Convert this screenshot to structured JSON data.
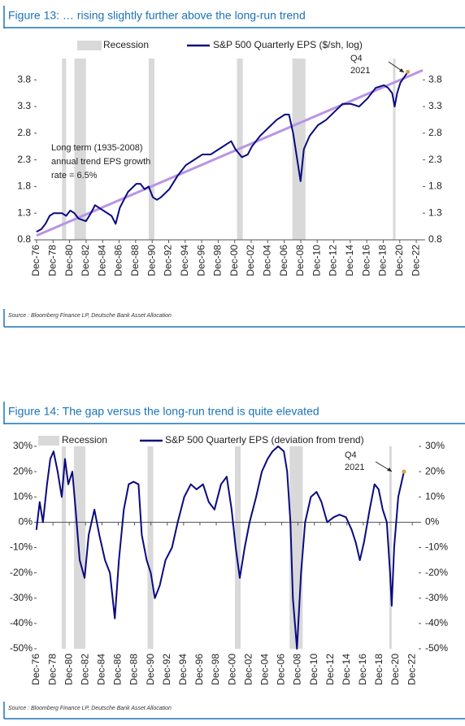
{
  "chart_data": [
    {
      "type": "line",
      "title": "Figure 13: … rising slightly further above the long-run trend",
      "source": "Source : Bloomberg Finance LP, Deutsche Bank Asset Allocation",
      "annotations": [
        "Long term (1935-2008)",
        "annual trend EPS growth",
        "rate = 6.5%",
        "Q4",
        "2021"
      ],
      "recession": {
        "name": "Recession",
        "color": "#d9d9d9",
        "starts": [
          1980.0,
          1981.5,
          1990.5,
          2001.2,
          2007.9,
          2020.1
        ],
        "ends": [
          1980.5,
          1982.9,
          1991.2,
          2001.9,
          2009.5,
          2020.4
        ]
      },
      "trend": {
        "x": [
          1976.92,
          2023.7
        ],
        "values": [
          0.88,
          3.98
        ],
        "color": "#b894e6"
      },
      "end_marker_color": "#d4a04a",
      "x": [
        1976.9,
        1977.5,
        1978,
        1978.5,
        1979,
        1980,
        1980.5,
        1981,
        1981.5,
        1982,
        1982.9,
        1983.5,
        1984,
        1985,
        1986,
        1986.5,
        1987,
        1988,
        1989,
        1989.5,
        1990,
        1990.5,
        1991,
        1991.5,
        1992,
        1993,
        1994,
        1995,
        1996,
        1997,
        1998,
        1999,
        2000,
        2000.5,
        2001,
        2001.8,
        2002.5,
        2003,
        2004,
        2005,
        2006,
        2007,
        2007.5,
        2008,
        2008.9,
        2009.3,
        2010,
        2011,
        2012,
        2013,
        2014,
        2015,
        2016,
        2017,
        2018,
        2019,
        2019.5,
        2020,
        2020.3,
        2020.6,
        2021,
        2021.9
      ],
      "series": [
        {
          "name": "S&P 500 Quarterly EPS ($/sh, log)",
          "color": "#0a0a80",
          "values": [
            0.95,
            1.0,
            1.1,
            1.25,
            1.3,
            1.3,
            1.25,
            1.35,
            1.3,
            1.2,
            1.15,
            1.3,
            1.45,
            1.35,
            1.25,
            1.1,
            1.4,
            1.7,
            1.85,
            1.85,
            1.75,
            1.8,
            1.6,
            1.55,
            1.6,
            1.75,
            2.0,
            2.2,
            2.3,
            2.4,
            2.4,
            2.5,
            2.6,
            2.65,
            2.5,
            2.35,
            2.4,
            2.55,
            2.75,
            2.9,
            3.05,
            3.15,
            3.15,
            2.8,
            1.9,
            2.5,
            2.75,
            2.95,
            3.05,
            3.2,
            3.35,
            3.35,
            3.3,
            3.45,
            3.65,
            3.7,
            3.65,
            3.55,
            3.3,
            3.55,
            3.75,
            3.95
          ]
        }
      ],
      "xlim": [
        1976.92,
        2023.7
      ],
      "xticks": [
        {
          "value": 1976.92,
          "label": "Dec-76"
        },
        {
          "value": 1978.92,
          "label": "Dec-78"
        },
        {
          "value": 1980.92,
          "label": "Dec-80"
        },
        {
          "value": 1982.92,
          "label": "Dec-82"
        },
        {
          "value": 1984.92,
          "label": "Dec-84"
        },
        {
          "value": 1986.92,
          "label": "Dec-86"
        },
        {
          "value": 1988.92,
          "label": "Dec-88"
        },
        {
          "value": 1990.92,
          "label": "Dec-90"
        },
        {
          "value": 1992.92,
          "label": "Dec-92"
        },
        {
          "value": 1994.92,
          "label": "Dec-94"
        },
        {
          "value": 1996.92,
          "label": "Dec-96"
        },
        {
          "value": 1998.92,
          "label": "Dec-98"
        },
        {
          "value": 2000.92,
          "label": "Dec-00"
        },
        {
          "value": 2002.92,
          "label": "Dec-02"
        },
        {
          "value": 2004.92,
          "label": "Dec-04"
        },
        {
          "value": 2006.92,
          "label": "Dec-06"
        },
        {
          "value": 2008.92,
          "label": "Dec-08"
        },
        {
          "value": 2010.92,
          "label": "Dec-10"
        },
        {
          "value": 2012.92,
          "label": "Dec-12"
        },
        {
          "value": 2014.92,
          "label": "Dec-14"
        },
        {
          "value": 2016.92,
          "label": "Dec-16"
        },
        {
          "value": 2018.92,
          "label": "Dec-18"
        },
        {
          "value": 2020.92,
          "label": "Dec-20"
        },
        {
          "value": 2022.92,
          "label": "Dec-22"
        }
      ],
      "ylim": [
        0.8,
        4.2
      ],
      "yticks": [
        0.8,
        1.3,
        1.8,
        2.3,
        2.8,
        3.3,
        3.8
      ]
    },
    {
      "type": "line",
      "title": "Figure 14: The gap versus the long-run trend is quite elevated",
      "source": "Source : Bloomberg Finance LP, Deutsche Bank Asset Allocation",
      "annotations": [
        "Q4",
        "2021"
      ],
      "recession": {
        "name": "Recession",
        "color": "#d9d9d9",
        "starts": [
          1980.0,
          1981.5,
          1990.5,
          2001.2,
          2007.9,
          2020.1
        ],
        "ends": [
          1980.5,
          1982.9,
          1991.2,
          2001.9,
          2009.5,
          2020.4
        ]
      },
      "end_marker_color": "#d4a04a",
      "x": [
        1976.9,
        1977.3,
        1977.7,
        1978.2,
        1978.6,
        1979,
        1979.5,
        1980,
        1980.4,
        1980.8,
        1981.3,
        1981.7,
        1982.2,
        1982.8,
        1983.3,
        1984,
        1984.6,
        1985.3,
        1985.9,
        1986.5,
        1987,
        1987.6,
        1988.2,
        1988.8,
        1989.4,
        1989.8,
        1990.4,
        1990.9,
        1991.4,
        1992,
        1992.7,
        1993.5,
        1994.2,
        1995,
        1995.8,
        1996.5,
        1997.3,
        1998,
        1998.7,
        1999.5,
        2000.2,
        2000.8,
        2001.3,
        2001.8,
        2002.4,
        2003,
        2003.8,
        2004.5,
        2005.2,
        2005.8,
        2006.5,
        2007.2,
        2007.6,
        2008,
        2008.3,
        2008.8,
        2009.3,
        2009.8,
        2010.5,
        2011.2,
        2011.8,
        2012.5,
        2013.3,
        2014,
        2014.8,
        2015.5,
        2016,
        2016.5,
        2017,
        2017.7,
        2018.3,
        2018.8,
        2019.3,
        2019.8,
        2020.2,
        2020.4,
        2020.7,
        2021.2,
        2021.9
      ],
      "series": [
        {
          "name": "S&P 500 Quarterly EPS (deviation from trend)",
          "color": "#0a0a80",
          "values": [
            -3,
            8,
            0,
            15,
            25,
            28,
            20,
            10,
            25,
            15,
            20,
            5,
            -15,
            -22,
            -5,
            5,
            -5,
            -15,
            -20,
            -38,
            -15,
            5,
            15,
            16,
            15,
            -5,
            -15,
            -20,
            -30,
            -25,
            -15,
            -10,
            0,
            10,
            15,
            13,
            15,
            8,
            5,
            15,
            18,
            5,
            -10,
            -22,
            -10,
            0,
            10,
            20,
            25,
            28,
            30,
            28,
            20,
            0,
            -30,
            -50,
            -20,
            0,
            10,
            12,
            8,
            0,
            2,
            3,
            2,
            -3,
            -8,
            -15,
            -8,
            5,
            15,
            13,
            5,
            0,
            -20,
            -33,
            -10,
            10,
            20
          ]
        }
      ],
      "xlim": [
        1976.92,
        2023.7
      ],
      "xticks": [
        {
          "value": 1976.92,
          "label": "Dec-76"
        },
        {
          "value": 1978.92,
          "label": "Dec-78"
        },
        {
          "value": 1980.92,
          "label": "Dec-80"
        },
        {
          "value": 1982.92,
          "label": "Dec-82"
        },
        {
          "value": 1984.92,
          "label": "Dec-84"
        },
        {
          "value": 1986.92,
          "label": "Dec-86"
        },
        {
          "value": 1988.92,
          "label": "Dec-88"
        },
        {
          "value": 1990.92,
          "label": "Dec-90"
        },
        {
          "value": 1992.92,
          "label": "Dec-92"
        },
        {
          "value": 1994.92,
          "label": "Dec-94"
        },
        {
          "value": 1996.92,
          "label": "Dec-96"
        },
        {
          "value": 1998.92,
          "label": "Dec-98"
        },
        {
          "value": 2000.92,
          "label": "Dec-00"
        },
        {
          "value": 2002.92,
          "label": "Dec-02"
        },
        {
          "value": 2004.92,
          "label": "Dec-04"
        },
        {
          "value": 2006.92,
          "label": "Dec-06"
        },
        {
          "value": 2008.92,
          "label": "Dec-08"
        },
        {
          "value": 2010.92,
          "label": "Dec-10"
        },
        {
          "value": 2012.92,
          "label": "Dec-12"
        },
        {
          "value": 2014.92,
          "label": "Dec-14"
        },
        {
          "value": 2016.92,
          "label": "Dec-16"
        },
        {
          "value": 2018.92,
          "label": "Dec-18"
        },
        {
          "value": 2020.92,
          "label": "Dec-20"
        },
        {
          "value": 2022.92,
          "label": "Dec-22"
        }
      ],
      "ylim": [
        -50,
        30
      ],
      "yticks": [
        {
          "value": -50,
          "label": "-50%"
        },
        {
          "value": -40,
          "label": "-40%"
        },
        {
          "value": -30,
          "label": "-30%"
        },
        {
          "value": -20,
          "label": "-20%"
        },
        {
          "value": -10,
          "label": "-10%"
        },
        {
          "value": 0,
          "label": "0%"
        },
        {
          "value": 10,
          "label": "10%"
        },
        {
          "value": 20,
          "label": "20%"
        },
        {
          "value": 30,
          "label": "30%"
        }
      ]
    }
  ]
}
